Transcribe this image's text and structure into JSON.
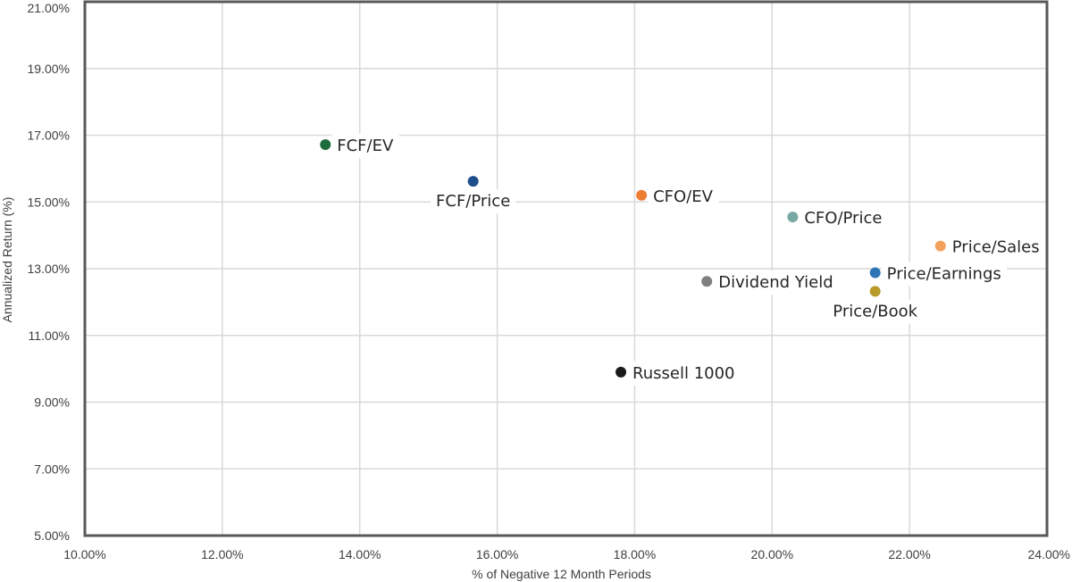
{
  "chart_data": {
    "type": "scatter",
    "title": "",
    "xlabel": "% of Negative 12 Month Periods",
    "ylabel": "Annualized Return (%)",
    "xlim": [
      10,
      24
    ],
    "ylim": [
      5,
      21
    ],
    "xticks": [
      "10.00%",
      "12.00%",
      "14.00%",
      "16.00%",
      "18.00%",
      "20.00%",
      "22.00%",
      "24.00%"
    ],
    "yticks": [
      "5.00%",
      "7.00%",
      "9.00%",
      "11.00%",
      "13.00%",
      "15.00%",
      "17.00%",
      "19.00%",
      "21.00%"
    ],
    "grid": true,
    "legend": "none",
    "points": [
      {
        "label": "FCF/EV",
        "x": 13.5,
        "y": 16.72,
        "color": "#1e6b3c",
        "label_pos": "right"
      },
      {
        "label": "FCF/Price",
        "x": 15.65,
        "y": 15.62,
        "color": "#1f4e8c",
        "label_pos": "below"
      },
      {
        "label": "CFO/EV",
        "x": 18.1,
        "y": 15.2,
        "color": "#ed7d31",
        "label_pos": "right"
      },
      {
        "label": "CFO/Price",
        "x": 20.3,
        "y": 14.55,
        "color": "#76a9a4",
        "label_pos": "right"
      },
      {
        "label": "Price/Sales",
        "x": 22.45,
        "y": 13.68,
        "color": "#f4a15d",
        "label_pos": "right"
      },
      {
        "label": "Price/Earnings",
        "x": 21.5,
        "y": 12.88,
        "color": "#2e75b6",
        "label_pos": "right"
      },
      {
        "label": "Price/Book",
        "x": 21.5,
        "y": 12.32,
        "color": "#b89a2a",
        "label_pos": "below"
      },
      {
        "label": "Dividend Yield",
        "x": 19.05,
        "y": 12.62,
        "color": "#7f7f7f",
        "label_pos": "right"
      },
      {
        "label": "Russell 1000",
        "x": 17.8,
        "y": 9.9,
        "color": "#1a1a1a",
        "label_pos": "right"
      }
    ]
  }
}
